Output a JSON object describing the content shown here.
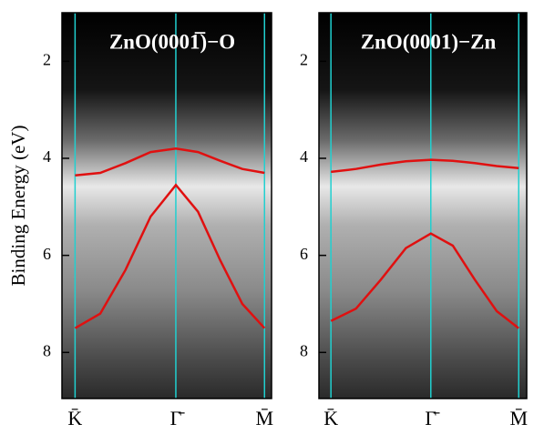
{
  "chart_data": [
    {
      "type": "line",
      "title": "ZnO(0001̅)−O",
      "y_label": "Binding Energy (eV)",
      "x": [
        0,
        0.25,
        0.5,
        0.75,
        1,
        1.22,
        1.44,
        1.66,
        1.88
      ],
      "series": [
        {
          "color": "#e01010",
          "values": [
            4.35,
            4.3,
            4.1,
            3.87,
            3.8,
            3.87,
            4.05,
            4.22,
            4.3
          ]
        },
        {
          "color": "#e01010",
          "values": [
            7.5,
            7.2,
            6.3,
            5.2,
            4.55,
            5.1,
            6.1,
            7.0,
            7.5
          ]
        }
      ],
      "xlim": [
        -0.13,
        1.95
      ],
      "xticks": [
        {
          "value": 0,
          "label": "K̄"
        },
        {
          "value": 1,
          "label": "Γ̄"
        },
        {
          "value": 1.88,
          "label": "M̄"
        }
      ],
      "ylim": [
        1,
        8.95
      ],
      "yticks": [
        2,
        4,
        6,
        8
      ],
      "y_inverted": true,
      "grid_color": "#20d0d0"
    },
    {
      "type": "line",
      "title": "ZnO(0001)−Zn",
      "x": [
        0,
        0.25,
        0.5,
        0.75,
        1,
        1.22,
        1.44,
        1.66,
        1.88
      ],
      "series": [
        {
          "color": "#e01010",
          "values": [
            4.28,
            4.22,
            4.13,
            4.06,
            4.03,
            4.05,
            4.1,
            4.16,
            4.2
          ]
        },
        {
          "color": "#e01010",
          "values": [
            7.35,
            7.1,
            6.5,
            5.85,
            5.55,
            5.8,
            6.5,
            7.15,
            7.5
          ]
        }
      ],
      "xlim": [
        -0.12,
        1.96
      ],
      "xticks": [
        {
          "value": 0,
          "label": "K̄"
        },
        {
          "value": 1,
          "label": "Γ̄"
        },
        {
          "value": 1.88,
          "label": "M̄"
        }
      ],
      "ylim": [
        1,
        8.95
      ],
      "yticks": [
        2,
        4,
        6,
        8
      ],
      "y_inverted": true,
      "grid_color": "#20d0d0"
    }
  ]
}
